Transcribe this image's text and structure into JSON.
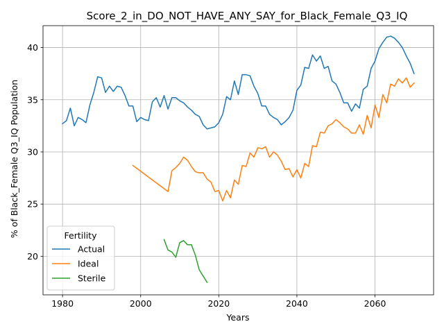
{
  "chart_data": {
    "type": "line",
    "title": "Score_2_in_DO_NOT_HAVE_ANY_SAY_for_Black_Female_Q3_IQ",
    "xlabel": "Years",
    "ylabel": "% of Black_Female Q3_IQ Population",
    "xlim": [
      1975,
      2075
    ],
    "ylim": [
      16.3,
      42.1
    ],
    "xticks": [
      1980,
      2000,
      2020,
      2040,
      2060
    ],
    "yticks": [
      20,
      25,
      30,
      35,
      40
    ],
    "grid": true,
    "legend": {
      "title": "Fertility",
      "position": "lower-left"
    },
    "series": [
      {
        "name": "Actual",
        "color": "#1f77b4",
        "x": [
          1980,
          1981,
          1982,
          1983,
          1984,
          1985,
          1986,
          1987,
          1988,
          1989,
          1990,
          1991,
          1992,
          1993,
          1994,
          1995,
          1996,
          1997,
          1998,
          1999,
          2000,
          2001,
          2002,
          2003,
          2004,
          2005,
          2006,
          2007,
          2008,
          2009,
          2010,
          2011,
          2012,
          2013,
          2014,
          2015,
          2016,
          2017,
          2018,
          2019,
          2020,
          2021,
          2022,
          2023,
          2024,
          2025,
          2026,
          2027,
          2028,
          2029,
          2030,
          2031,
          2032,
          2033,
          2034,
          2035,
          2036,
          2037,
          2038,
          2039,
          2040,
          2041,
          2042,
          2043,
          2044,
          2045,
          2046,
          2047,
          2048,
          2049,
          2050,
          2051,
          2052,
          2053,
          2054,
          2055,
          2056,
          2057,
          2058,
          2059,
          2060,
          2061,
          2062,
          2063,
          2064,
          2065,
          2066,
          2067,
          2068,
          2069,
          2070
        ],
        "values": [
          32.7,
          33.0,
          34.2,
          32.5,
          33.3,
          33.1,
          32.8,
          34.5,
          35.7,
          37.2,
          37.1,
          35.7,
          36.3,
          35.8,
          36.3,
          36.2,
          35.4,
          34.4,
          34.4,
          32.9,
          33.3,
          33.1,
          33.0,
          34.8,
          35.2,
          34.3,
          35.4,
          34.1,
          35.2,
          35.2,
          34.9,
          34.7,
          34.3,
          34.0,
          33.6,
          33.4,
          32.6,
          32.2,
          32.3,
          32.4,
          32.8,
          33.6,
          35.3,
          35.0,
          36.8,
          35.5,
          37.4,
          37.4,
          37.3,
          36.3,
          35.6,
          34.4,
          34.4,
          33.6,
          33.3,
          33.1,
          32.6,
          32.9,
          33.3,
          34.0,
          35.9,
          36.4,
          38.1,
          38.0,
          39.3,
          38.7,
          39.2,
          38.0,
          38.2,
          36.8,
          36.5,
          35.7,
          34.7,
          34.7,
          33.9,
          34.6,
          34.2,
          36.0,
          36.3,
          38.0,
          38.7,
          39.9,
          40.5,
          41.0,
          41.1,
          40.9,
          40.5,
          40.0,
          39.2,
          38.5,
          37.5
        ]
      },
      {
        "name": "Ideal",
        "color": "#ff7f0e",
        "x": [
          1998,
          2007,
          2008,
          2009,
          2010,
          2011,
          2012,
          2013,
          2014,
          2015,
          2016,
          2017,
          2018,
          2019,
          2020,
          2021,
          2022,
          2023,
          2024,
          2025,
          2026,
          2027,
          2028,
          2029,
          2030,
          2031,
          2032,
          2033,
          2034,
          2035,
          2036,
          2037,
          2038,
          2039,
          2040,
          2041,
          2042,
          2043,
          2044,
          2045,
          2046,
          2047,
          2048,
          2049,
          2050,
          2051,
          2052,
          2053,
          2054,
          2055,
          2056,
          2057,
          2058,
          2059,
          2060,
          2061,
          2062,
          2063,
          2064,
          2065,
          2066,
          2067,
          2068,
          2069,
          2070
        ],
        "values": [
          28.7,
          26.2,
          28.2,
          28.5,
          28.9,
          29.5,
          29.2,
          28.6,
          28.1,
          28.0,
          28.0,
          27.4,
          27.1,
          26.2,
          26.3,
          25.3,
          26.3,
          25.6,
          27.3,
          26.9,
          28.7,
          28.6,
          29.9,
          29.5,
          30.4,
          30.3,
          30.5,
          29.5,
          30.0,
          29.7,
          29.1,
          28.3,
          28.4,
          27.6,
          28.3,
          27.5,
          28.9,
          28.6,
          30.6,
          30.5,
          31.9,
          31.8,
          32.5,
          32.7,
          33.1,
          32.8,
          32.4,
          32.2,
          31.8,
          31.8,
          32.6,
          31.7,
          33.5,
          32.3,
          34.5,
          33.3,
          35.5,
          34.7,
          36.5,
          36.3,
          37.0,
          36.6,
          37.1,
          36.2,
          36.6
        ]
      },
      {
        "name": "Sterile",
        "color": "#2ca02c",
        "x": [
          2006,
          2007,
          2008,
          2009,
          2010,
          2011,
          2012,
          2013,
          2014,
          2015,
          2016,
          2017
        ],
        "values": [
          21.6,
          20.6,
          20.4,
          19.9,
          21.3,
          21.5,
          21.1,
          21.1,
          20.1,
          18.7,
          18.1,
          17.5
        ]
      }
    ]
  }
}
